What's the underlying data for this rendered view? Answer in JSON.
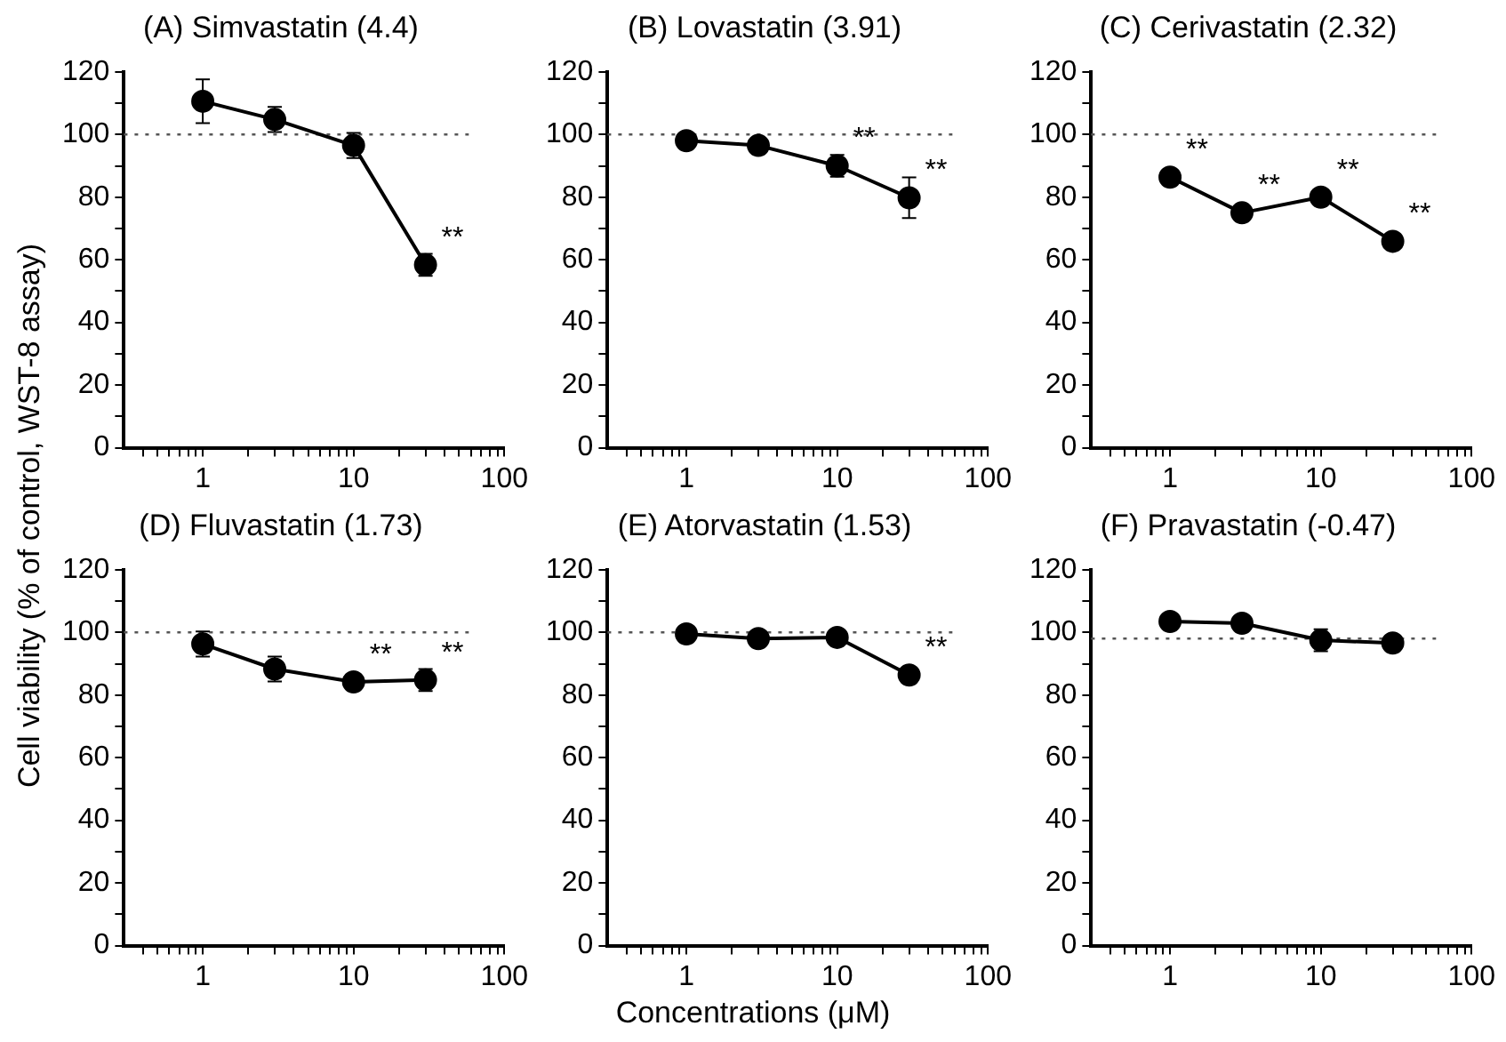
{
  "chart_data": [
    {
      "type": "line",
      "title": "(A) Simvastatin (4.4)",
      "ylabel": "Cell viability (% of control, WST-8 assay)",
      "x": [
        1,
        3,
        10,
        30
      ],
      "values": [
        110.6,
        104.8,
        96.5,
        58.4
      ],
      "errors": [
        7,
        4,
        4,
        3.5
      ],
      "color": "#000000",
      "marker": "circle",
      "log": "x",
      "grid": false,
      "xlim": [
        0.3,
        100
      ],
      "xticks": [
        {
          "value": 0.4,
          "label": null
        },
        {
          "value": 0.5,
          "label": null
        },
        {
          "value": 0.6,
          "label": null
        },
        {
          "value": 0.7,
          "label": null
        },
        {
          "value": 0.8,
          "label": null
        },
        {
          "value": 0.9,
          "label": null
        },
        1,
        {
          "value": 2,
          "label": null
        },
        {
          "value": 3,
          "label": null
        },
        {
          "value": 4,
          "label": null
        },
        {
          "value": 5,
          "label": null
        },
        {
          "value": 6,
          "label": null
        },
        {
          "value": 7,
          "label": null
        },
        {
          "value": 8,
          "label": null
        },
        {
          "value": 9,
          "label": null
        },
        10,
        {
          "value": 20,
          "label": null
        },
        {
          "value": 30,
          "label": null
        },
        {
          "value": 40,
          "label": null
        },
        {
          "value": 50,
          "label": null
        },
        {
          "value": 60,
          "label": null
        },
        {
          "value": 70,
          "label": null
        },
        {
          "value": 80,
          "label": null
        },
        {
          "value": 90,
          "label": null
        },
        100
      ],
      "ylim": [
        0,
        120
      ],
      "yticks": [
        0,
        {
          "value": 10,
          "label": null
        },
        20,
        {
          "value": 30,
          "label": null
        },
        40,
        {
          "value": 50,
          "label": null
        },
        60,
        {
          "value": 70,
          "label": null
        },
        80,
        {
          "value": 90,
          "label": null
        },
        100,
        {
          "value": 110,
          "label": null
        },
        120
      ],
      "ref_lines": [
        {
          "axis": "y",
          "value": 100,
          "line_style": "dotted",
          "color": "#555555"
        }
      ],
      "annotations": [
        {
          "text": "**",
          "x": 30,
          "y": 58.4
        }
      ]
    },
    {
      "type": "line",
      "title": "(B) Lovastatin (3.91)",
      "x": [
        1,
        3,
        10,
        30
      ],
      "values": [
        98,
        96.5,
        90,
        79.8
      ],
      "errors": [
        null,
        null,
        3.5,
        6.5
      ],
      "color": "#000000",
      "marker": "circle",
      "log": "x",
      "grid": false,
      "xlim": [
        0.3,
        100
      ],
      "xticks": [
        {
          "value": 0.4,
          "label": null
        },
        {
          "value": 0.5,
          "label": null
        },
        {
          "value": 0.6,
          "label": null
        },
        {
          "value": 0.7,
          "label": null
        },
        {
          "value": 0.8,
          "label": null
        },
        {
          "value": 0.9,
          "label": null
        },
        1,
        {
          "value": 2,
          "label": null
        },
        {
          "value": 3,
          "label": null
        },
        {
          "value": 4,
          "label": null
        },
        {
          "value": 5,
          "label": null
        },
        {
          "value": 6,
          "label": null
        },
        {
          "value": 7,
          "label": null
        },
        {
          "value": 8,
          "label": null
        },
        {
          "value": 9,
          "label": null
        },
        10,
        {
          "value": 20,
          "label": null
        },
        {
          "value": 30,
          "label": null
        },
        {
          "value": 40,
          "label": null
        },
        {
          "value": 50,
          "label": null
        },
        {
          "value": 60,
          "label": null
        },
        {
          "value": 70,
          "label": null
        },
        {
          "value": 80,
          "label": null
        },
        {
          "value": 90,
          "label": null
        },
        100
      ],
      "ylim": [
        0,
        120
      ],
      "yticks": [
        0,
        {
          "value": 10,
          "label": null
        },
        20,
        {
          "value": 30,
          "label": null
        },
        40,
        {
          "value": 50,
          "label": null
        },
        60,
        {
          "value": 70,
          "label": null
        },
        80,
        {
          "value": 90,
          "label": null
        },
        100,
        {
          "value": 110,
          "label": null
        },
        120
      ],
      "ref_lines": [
        {
          "axis": "y",
          "value": 100,
          "line_style": "dotted",
          "color": "#555555"
        }
      ],
      "annotations": [
        {
          "text": "**",
          "x": 10,
          "y": 90
        },
        {
          "text": "**",
          "x": 30,
          "y": 79.8
        }
      ]
    },
    {
      "type": "line",
      "title": "(C) Cerivastatin (2.32)",
      "x": [
        1,
        3,
        10,
        30
      ],
      "values": [
        86.4,
        75,
        80,
        65.9
      ],
      "color": "#000000",
      "marker": "circle",
      "log": "x",
      "grid": false,
      "xlim": [
        0.3,
        100
      ],
      "xticks": [
        {
          "value": 0.4,
          "label": null
        },
        {
          "value": 0.5,
          "label": null
        },
        {
          "value": 0.6,
          "label": null
        },
        {
          "value": 0.7,
          "label": null
        },
        {
          "value": 0.8,
          "label": null
        },
        {
          "value": 0.9,
          "label": null
        },
        1,
        {
          "value": 2,
          "label": null
        },
        {
          "value": 3,
          "label": null
        },
        {
          "value": 4,
          "label": null
        },
        {
          "value": 5,
          "label": null
        },
        {
          "value": 6,
          "label": null
        },
        {
          "value": 7,
          "label": null
        },
        {
          "value": 8,
          "label": null
        },
        {
          "value": 9,
          "label": null
        },
        10,
        {
          "value": 20,
          "label": null
        },
        {
          "value": 30,
          "label": null
        },
        {
          "value": 40,
          "label": null
        },
        {
          "value": 50,
          "label": null
        },
        {
          "value": 60,
          "label": null
        },
        {
          "value": 70,
          "label": null
        },
        {
          "value": 80,
          "label": null
        },
        {
          "value": 90,
          "label": null
        },
        100
      ],
      "ylim": [
        0,
        120
      ],
      "yticks": [
        0,
        {
          "value": 10,
          "label": null
        },
        20,
        {
          "value": 30,
          "label": null
        },
        40,
        {
          "value": 50,
          "label": null
        },
        60,
        {
          "value": 70,
          "label": null
        },
        80,
        {
          "value": 90,
          "label": null
        },
        100,
        {
          "value": 110,
          "label": null
        },
        120
      ],
      "ref_lines": [
        {
          "axis": "y",
          "value": 100,
          "line_style": "dotted",
          "color": "#555555"
        }
      ],
      "annotations": [
        {
          "text": "**",
          "x": 1,
          "y": 86.4
        },
        {
          "text": "**",
          "x": 3,
          "y": 75
        },
        {
          "text": "**",
          "x": 10,
          "y": 80
        },
        {
          "text": "**",
          "x": 30,
          "y": 65.9
        }
      ]
    },
    {
      "type": "line",
      "title": "(D) Fluvastatin (1.73)",
      "x": [
        1,
        3,
        10,
        30
      ],
      "values": [
        96.3,
        88.3,
        84.2,
        84.8
      ],
      "errors": [
        4,
        4,
        null,
        3.5
      ],
      "color": "#000000",
      "marker": "circle",
      "log": "x",
      "grid": false,
      "xlim": [
        0.3,
        100
      ],
      "xticks": [
        {
          "value": 0.4,
          "label": null
        },
        {
          "value": 0.5,
          "label": null
        },
        {
          "value": 0.6,
          "label": null
        },
        {
          "value": 0.7,
          "label": null
        },
        {
          "value": 0.8,
          "label": null
        },
        {
          "value": 0.9,
          "label": null
        },
        1,
        {
          "value": 2,
          "label": null
        },
        {
          "value": 3,
          "label": null
        },
        {
          "value": 4,
          "label": null
        },
        {
          "value": 5,
          "label": null
        },
        {
          "value": 6,
          "label": null
        },
        {
          "value": 7,
          "label": null
        },
        {
          "value": 8,
          "label": null
        },
        {
          "value": 9,
          "label": null
        },
        10,
        {
          "value": 20,
          "label": null
        },
        {
          "value": 30,
          "label": null
        },
        {
          "value": 40,
          "label": null
        },
        {
          "value": 50,
          "label": null
        },
        {
          "value": 60,
          "label": null
        },
        {
          "value": 70,
          "label": null
        },
        {
          "value": 80,
          "label": null
        },
        {
          "value": 90,
          "label": null
        },
        100
      ],
      "ylim": [
        0,
        120
      ],
      "yticks": [
        0,
        {
          "value": 10,
          "label": null
        },
        20,
        {
          "value": 30,
          "label": null
        },
        40,
        {
          "value": 50,
          "label": null
        },
        60,
        {
          "value": 70,
          "label": null
        },
        80,
        {
          "value": 90,
          "label": null
        },
        100,
        {
          "value": 110,
          "label": null
        },
        120
      ],
      "ref_lines": [
        {
          "axis": "y",
          "value": 100,
          "line_style": "dotted",
          "color": "#555555"
        }
      ],
      "annotations": [
        {
          "text": "**",
          "x": 10,
          "y": 84.2
        },
        {
          "text": "**",
          "x": 30,
          "y": 84.8
        }
      ]
    },
    {
      "type": "line",
      "title": "(E) Atorvastatin (1.53)",
      "xlabel": "Concentrations (μM)",
      "x": [
        1,
        3,
        10,
        30
      ],
      "values": [
        99.5,
        98,
        98.4,
        86.4
      ],
      "color": "#000000",
      "marker": "circle",
      "log": "x",
      "grid": false,
      "xlim": [
        0.3,
        100
      ],
      "xticks": [
        {
          "value": 0.4,
          "label": null
        },
        {
          "value": 0.5,
          "label": null
        },
        {
          "value": 0.6,
          "label": null
        },
        {
          "value": 0.7,
          "label": null
        },
        {
          "value": 0.8,
          "label": null
        },
        {
          "value": 0.9,
          "label": null
        },
        1,
        {
          "value": 2,
          "label": null
        },
        {
          "value": 3,
          "label": null
        },
        {
          "value": 4,
          "label": null
        },
        {
          "value": 5,
          "label": null
        },
        {
          "value": 6,
          "label": null
        },
        {
          "value": 7,
          "label": null
        },
        {
          "value": 8,
          "label": null
        },
        {
          "value": 9,
          "label": null
        },
        10,
        {
          "value": 20,
          "label": null
        },
        {
          "value": 30,
          "label": null
        },
        {
          "value": 40,
          "label": null
        },
        {
          "value": 50,
          "label": null
        },
        {
          "value": 60,
          "label": null
        },
        {
          "value": 70,
          "label": null
        },
        {
          "value": 80,
          "label": null
        },
        {
          "value": 90,
          "label": null
        },
        100
      ],
      "ylim": [
        0,
        120
      ],
      "yticks": [
        0,
        {
          "value": 10,
          "label": null
        },
        20,
        {
          "value": 30,
          "label": null
        },
        40,
        {
          "value": 50,
          "label": null
        },
        60,
        {
          "value": 70,
          "label": null
        },
        80,
        {
          "value": 90,
          "label": null
        },
        100,
        {
          "value": 110,
          "label": null
        },
        120
      ],
      "ref_lines": [
        {
          "axis": "y",
          "value": 100,
          "line_style": "dotted",
          "color": "#555555"
        }
      ],
      "annotations": [
        {
          "text": "**",
          "x": 30,
          "y": 86.4
        }
      ]
    },
    {
      "type": "line",
      "title": "(F) Pravastatin (-0.47)",
      "x": [
        1,
        3,
        10,
        30
      ],
      "values": [
        103.5,
        102.9,
        97.5,
        96.6
      ],
      "errors": [
        null,
        null,
        3.5,
        null
      ],
      "color": "#000000",
      "marker": "circle",
      "log": "x",
      "grid": false,
      "xlim": [
        0.3,
        100
      ],
      "xticks": [
        {
          "value": 0.4,
          "label": null
        },
        {
          "value": 0.5,
          "label": null
        },
        {
          "value": 0.6,
          "label": null
        },
        {
          "value": 0.7,
          "label": null
        },
        {
          "value": 0.8,
          "label": null
        },
        {
          "value": 0.9,
          "label": null
        },
        1,
        {
          "value": 2,
          "label": null
        },
        {
          "value": 3,
          "label": null
        },
        {
          "value": 4,
          "label": null
        },
        {
          "value": 5,
          "label": null
        },
        {
          "value": 6,
          "label": null
        },
        {
          "value": 7,
          "label": null
        },
        {
          "value": 8,
          "label": null
        },
        {
          "value": 9,
          "label": null
        },
        10,
        {
          "value": 20,
          "label": null
        },
        {
          "value": 30,
          "label": null
        },
        {
          "value": 40,
          "label": null
        },
        {
          "value": 50,
          "label": null
        },
        {
          "value": 60,
          "label": null
        },
        {
          "value": 70,
          "label": null
        },
        {
          "value": 80,
          "label": null
        },
        {
          "value": 90,
          "label": null
        },
        100
      ],
      "ylim": [
        0,
        120
      ],
      "yticks": [
        0,
        {
          "value": 10,
          "label": null
        },
        20,
        {
          "value": 30,
          "label": null
        },
        40,
        {
          "value": 50,
          "label": null
        },
        60,
        {
          "value": 70,
          "label": null
        },
        80,
        {
          "value": 90,
          "label": null
        },
        100,
        {
          "value": 110,
          "label": null
        },
        120
      ],
      "ref_lines": [
        {
          "axis": "y",
          "value": 98,
          "line_style": "dotted",
          "color": "#555555"
        }
      ]
    }
  ]
}
